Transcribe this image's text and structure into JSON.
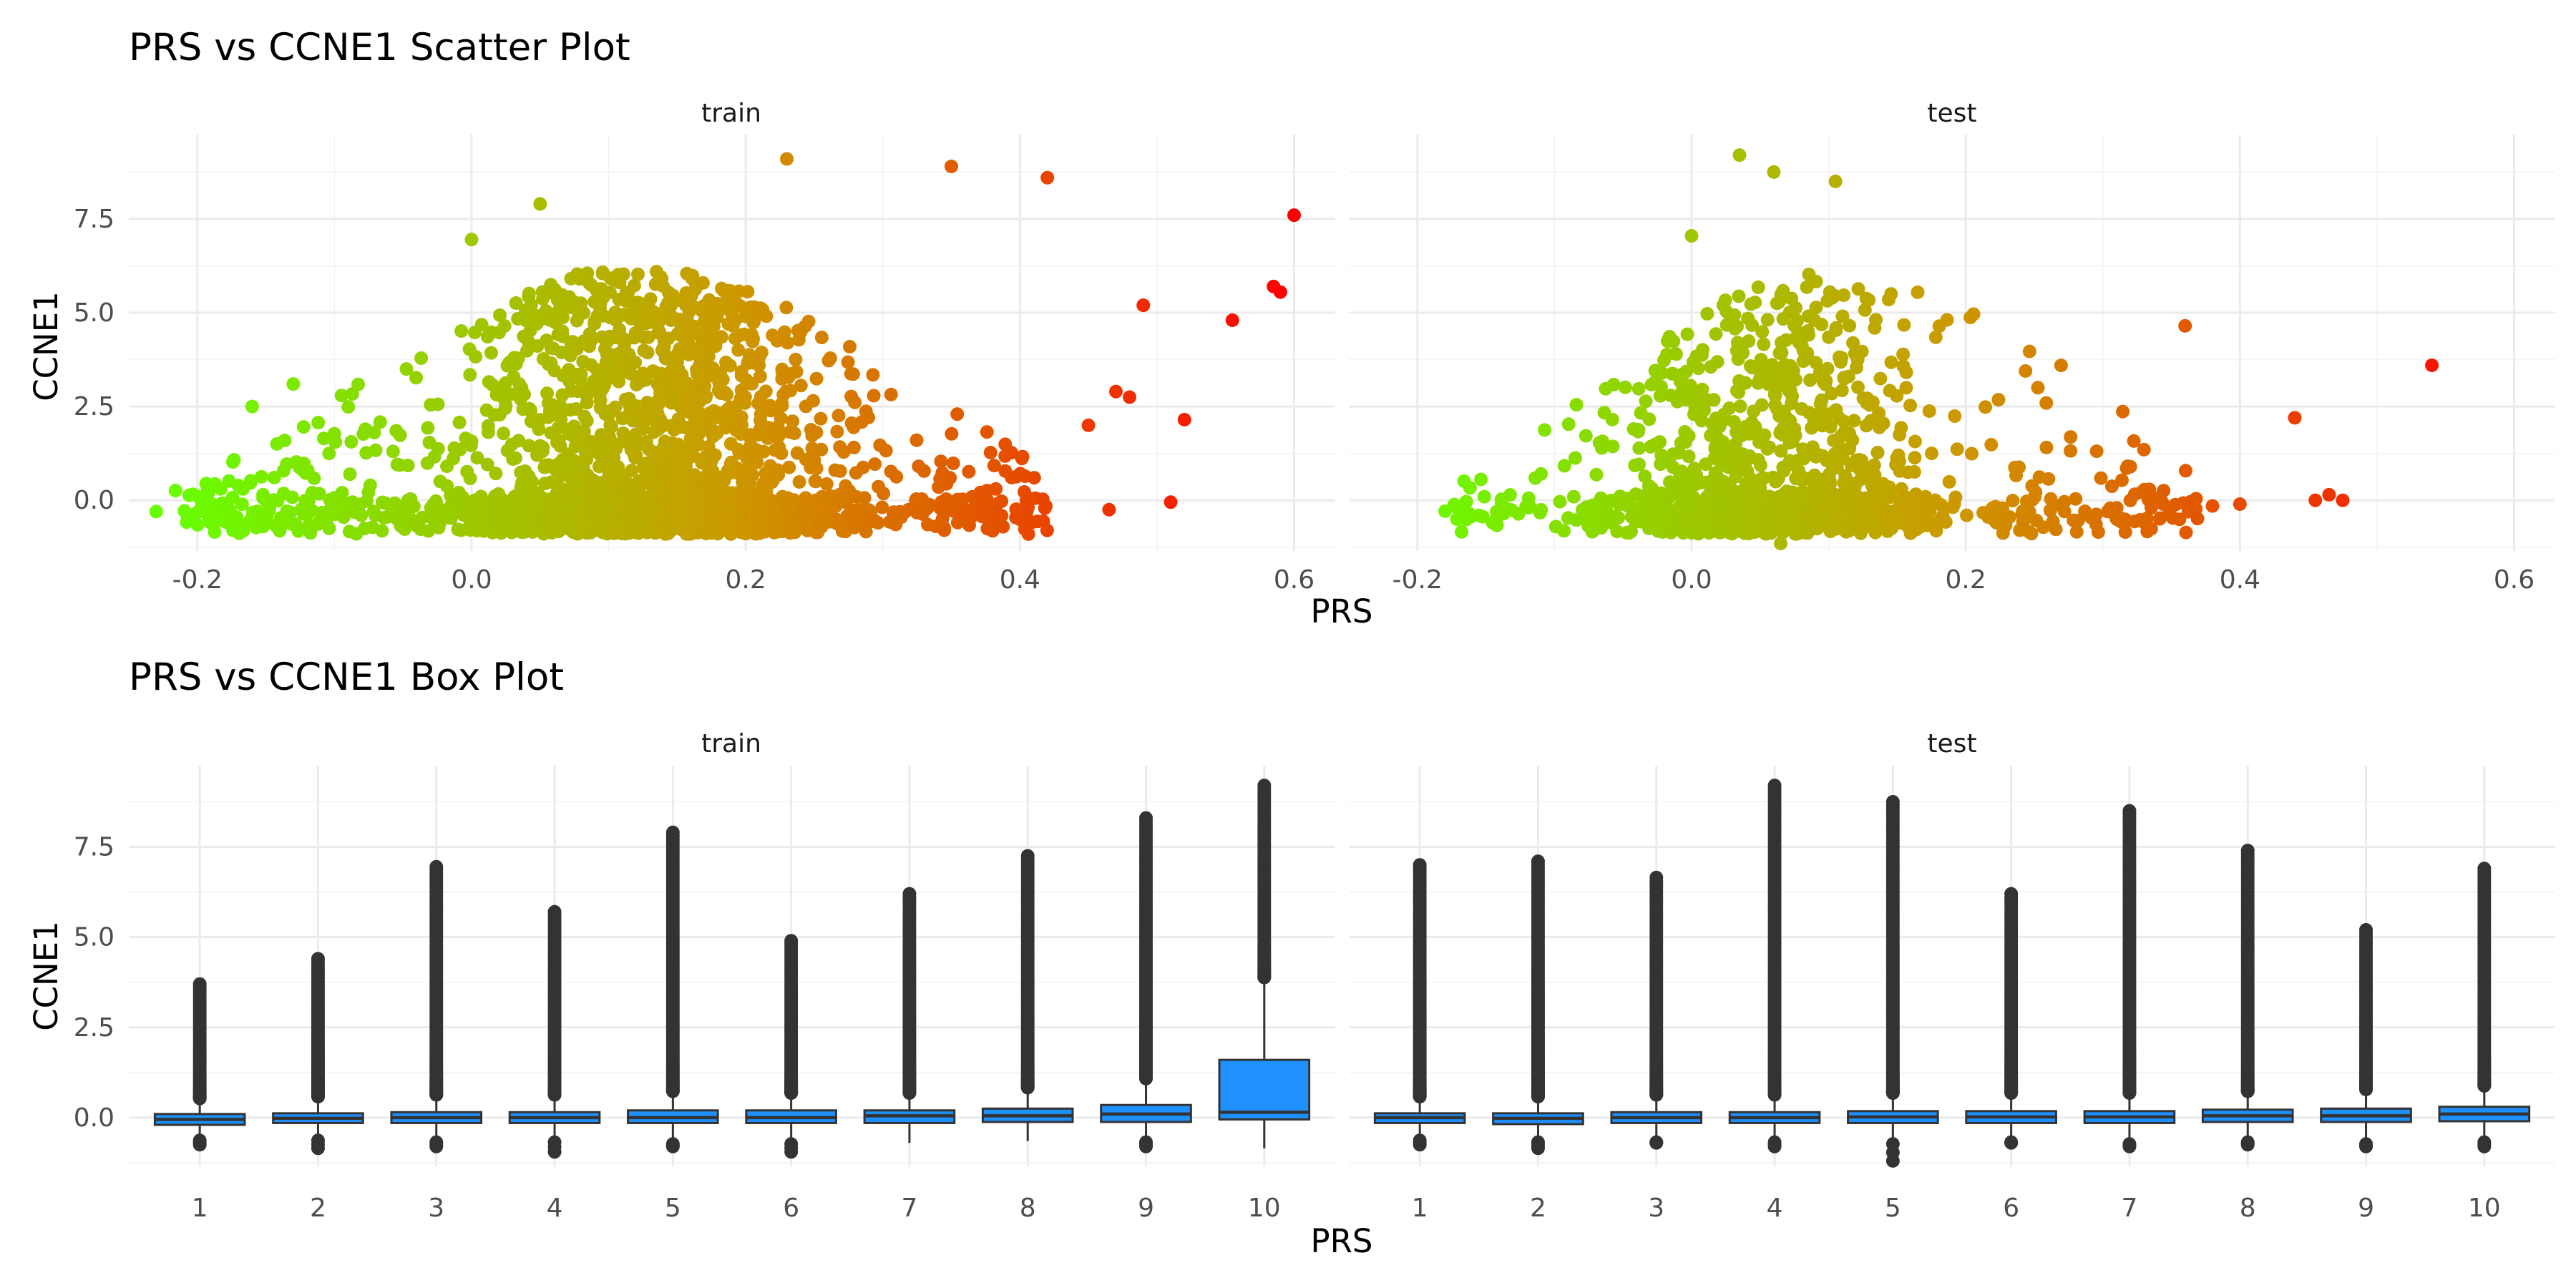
{
  "chart_data": [
    {
      "type": "scatter",
      "title": "PRS vs CCNE1 Scatter Plot",
      "xlabel": "PRS",
      "ylabel": "CCNE1",
      "xlim": [
        -0.25,
        0.63
      ],
      "ylim": [
        -1.35,
        9.75
      ],
      "x_ticks": [
        -0.2,
        0.0,
        0.2,
        0.4,
        0.6
      ],
      "x_tick_labels": [
        "-0.2",
        "0.0",
        "0.2",
        "0.4",
        "0.6"
      ],
      "y_ticks": [
        0.0,
        2.5,
        5.0,
        7.5
      ],
      "y_tick_labels": [
        "0.0",
        "2.5",
        "5.0",
        "7.5"
      ],
      "grid": true,
      "color_scale": {
        "low": "#66ff00",
        "mid": "#cc9900",
        "high": "#ff0000",
        "range": [
          -0.22,
          0.6
        ]
      },
      "panels": [
        {
          "name": "train",
          "cloud": {
            "x_range": [
              -0.22,
              0.42
            ],
            "dense_x_range": [
              -0.05,
              0.32
            ],
            "count": 2600
          },
          "highlighted_points": [
            {
              "x": -0.23,
              "y": -0.3
            },
            {
              "x": -0.16,
              "y": 2.5
            },
            {
              "x": -0.13,
              "y": 3.1
            },
            {
              "x": 0.0,
              "y": 6.95
            },
            {
              "x": 0.05,
              "y": 7.9
            },
            {
              "x": 0.23,
              "y": 9.1
            },
            {
              "x": 0.35,
              "y": 8.9
            },
            {
              "x": 0.42,
              "y": 8.6
            },
            {
              "x": 0.47,
              "y": 2.9
            },
            {
              "x": 0.45,
              "y": 2.0
            },
            {
              "x": 0.465,
              "y": -0.25
            },
            {
              "x": 0.48,
              "y": 2.75
            },
            {
              "x": 0.49,
              "y": 5.2
            },
            {
              "x": 0.51,
              "y": -0.05
            },
            {
              "x": 0.52,
              "y": 2.15
            },
            {
              "x": 0.555,
              "y": 4.8
            },
            {
              "x": 0.585,
              "y": 5.7
            },
            {
              "x": 0.59,
              "y": 5.55
            },
            {
              "x": 0.6,
              "y": 7.6
            }
          ]
        },
        {
          "name": "test",
          "cloud": {
            "x_range": [
              -0.18,
              0.37
            ],
            "dense_x_range": [
              -0.1,
              0.22
            ],
            "count": 1400
          },
          "highlighted_points": [
            {
              "x": -0.17,
              "y": -0.25
            },
            {
              "x": 0.0,
              "y": 7.05
            },
            {
              "x": 0.035,
              "y": 9.2
            },
            {
              "x": 0.06,
              "y": 8.75
            },
            {
              "x": 0.105,
              "y": 8.5
            },
            {
              "x": 0.065,
              "y": -1.15
            },
            {
              "x": 0.33,
              "y": 1.35
            },
            {
              "x": 0.36,
              "y": 4.65
            },
            {
              "x": 0.38,
              "y": -0.15
            },
            {
              "x": 0.4,
              "y": -0.1
            },
            {
              "x": 0.44,
              "y": 2.2
            },
            {
              "x": 0.455,
              "y": 0.0
            },
            {
              "x": 0.465,
              "y": 0.15
            },
            {
              "x": 0.475,
              "y": 0.0
            },
            {
              "x": 0.54,
              "y": 3.6
            }
          ]
        }
      ]
    },
    {
      "type": "box",
      "title": "PRS vs CCNE1 Box Plot",
      "xlabel": "PRS",
      "ylabel": "CCNE1",
      "categories": [
        "1",
        "2",
        "3",
        "4",
        "5",
        "6",
        "7",
        "8",
        "9",
        "10"
      ],
      "ylim": [
        -1.35,
        9.75
      ],
      "y_ticks": [
        0.0,
        2.5,
        5.0,
        7.5
      ],
      "y_tick_labels": [
        "0.0",
        "2.5",
        "5.0",
        "7.5"
      ],
      "grid": true,
      "box_fill": "#1e90ff",
      "box_line": "#333333",
      "panels": [
        {
          "name": "train",
          "boxes": [
            {
              "q1": -0.2,
              "median": -0.05,
              "q3": 0.1,
              "whisker_low": -0.55,
              "whisker_high": 0.45,
              "outlier_max": 3.7,
              "outlier_min": -0.75
            },
            {
              "q1": -0.15,
              "median": -0.02,
              "q3": 0.12,
              "whisker_low": -0.55,
              "whisker_high": 0.5,
              "outlier_max": 4.4,
              "outlier_min": -0.85
            },
            {
              "q1": -0.15,
              "median": 0.0,
              "q3": 0.15,
              "whisker_low": -0.6,
              "whisker_high": 0.55,
              "outlier_max": 6.95,
              "outlier_min": -0.8
            },
            {
              "q1": -0.15,
              "median": 0.0,
              "q3": 0.15,
              "whisker_low": -0.6,
              "whisker_high": 0.55,
              "outlier_max": 5.7,
              "outlier_min": -0.95
            },
            {
              "q1": -0.15,
              "median": 0.0,
              "q3": 0.2,
              "whisker_low": -0.65,
              "whisker_high": 0.65,
              "outlier_max": 7.9,
              "outlier_min": -0.8
            },
            {
              "q1": -0.15,
              "median": 0.0,
              "q3": 0.2,
              "whisker_low": -0.65,
              "whisker_high": 0.6,
              "outlier_max": 4.9,
              "outlier_min": -0.95
            },
            {
              "q1": -0.15,
              "median": 0.05,
              "q3": 0.2,
              "whisker_low": -0.7,
              "whisker_high": 0.6,
              "outlier_max": 6.2,
              "outlier_min": null
            },
            {
              "q1": -0.12,
              "median": 0.05,
              "q3": 0.25,
              "whisker_low": -0.65,
              "whisker_high": 0.75,
              "outlier_max": 7.25,
              "outlier_min": null
            },
            {
              "q1": -0.12,
              "median": 0.1,
              "q3": 0.35,
              "whisker_low": -0.6,
              "whisker_high": 1.0,
              "outlier_max": 8.3,
              "outlier_min": -0.8
            },
            {
              "q1": -0.05,
              "median": 0.15,
              "q3": 1.6,
              "whisker_low": -0.85,
              "whisker_high": 3.8,
              "outlier_max": 9.2,
              "outlier_min": null
            }
          ]
        },
        {
          "name": "test",
          "boxes": [
            {
              "q1": -0.15,
              "median": 0.0,
              "q3": 0.12,
              "whisker_low": -0.55,
              "whisker_high": 0.5,
              "outlier_max": 7.0,
              "outlier_min": -0.75
            },
            {
              "q1": -0.18,
              "median": -0.02,
              "q3": 0.12,
              "whisker_low": -0.6,
              "whisker_high": 0.5,
              "outlier_max": 7.1,
              "outlier_min": -0.85
            },
            {
              "q1": -0.15,
              "median": 0.0,
              "q3": 0.15,
              "whisker_low": -0.6,
              "whisker_high": 0.55,
              "outlier_max": 6.65,
              "outlier_min": -0.7
            },
            {
              "q1": -0.15,
              "median": 0.0,
              "q3": 0.15,
              "whisker_low": -0.6,
              "whisker_high": 0.55,
              "outlier_max": 9.2,
              "outlier_min": -0.8
            },
            {
              "q1": -0.15,
              "median": 0.02,
              "q3": 0.18,
              "whisker_low": -0.65,
              "whisker_high": 0.6,
              "outlier_max": 8.75,
              "outlier_min": -1.2
            },
            {
              "q1": -0.15,
              "median": 0.02,
              "q3": 0.18,
              "whisker_low": -0.6,
              "whisker_high": 0.6,
              "outlier_max": 6.2,
              "outlier_min": -0.7
            },
            {
              "q1": -0.15,
              "median": 0.02,
              "q3": 0.18,
              "whisker_low": -0.65,
              "whisker_high": 0.6,
              "outlier_max": 8.5,
              "outlier_min": -0.8
            },
            {
              "q1": -0.12,
              "median": 0.05,
              "q3": 0.22,
              "whisker_low": -0.6,
              "whisker_high": 0.65,
              "outlier_max": 7.4,
              "outlier_min": -0.75
            },
            {
              "q1": -0.12,
              "median": 0.05,
              "q3": 0.25,
              "whisker_low": -0.65,
              "whisker_high": 0.7,
              "outlier_max": 5.2,
              "outlier_min": -0.8
            },
            {
              "q1": -0.1,
              "median": 0.1,
              "q3": 0.3,
              "whisker_low": -0.6,
              "whisker_high": 0.8,
              "outlier_max": 6.9,
              "outlier_min": -0.8
            }
          ]
        }
      ]
    }
  ]
}
